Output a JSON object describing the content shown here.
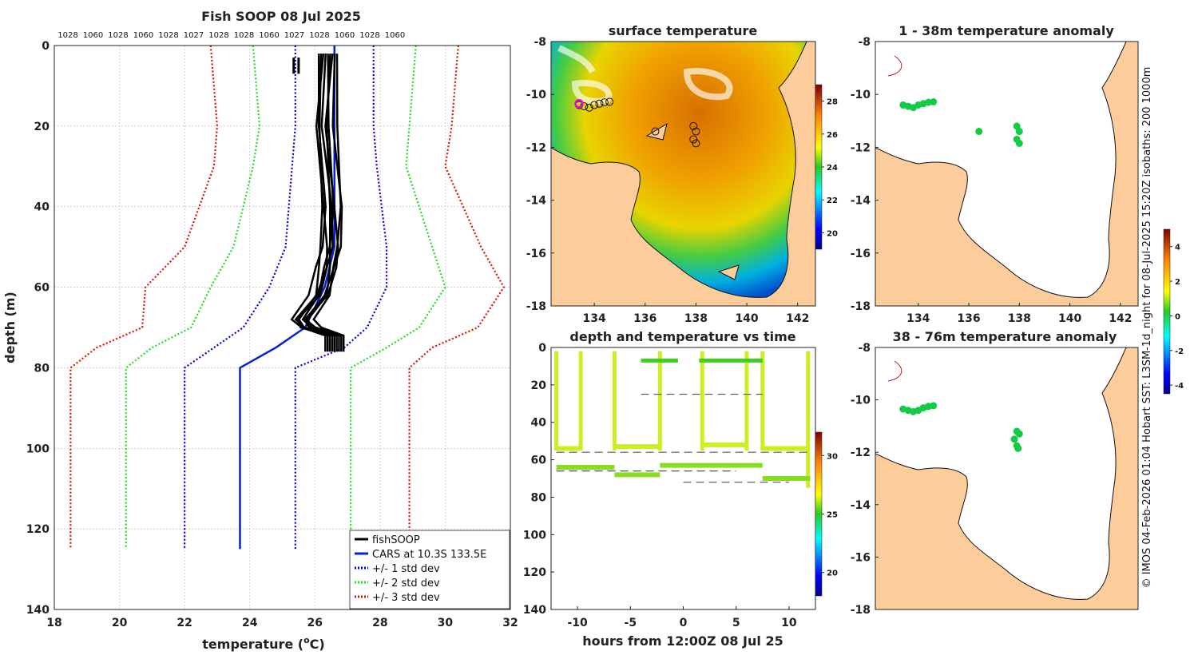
{
  "profile": {
    "title": "Fish SOOP 08 Jul 2025",
    "xlabel": "temperature (",
    "xlabel_unit": "o",
    "xlabel_end": "C)",
    "ylabel": "depth (m)",
    "top_labels": [
      "1028",
      "1060",
      "1028",
      "1060",
      "1028",
      "1027",
      "1028",
      "1028",
      "1060",
      "1027",
      "1028",
      "1060",
      "1028",
      "1060"
    ],
    "legend": [
      "fishSOOP",
      "CARS at 10.3S 133.5E",
      "+/- 1 std dev",
      "+/- 2 std dev",
      "+/- 3 std dev"
    ],
    "colors": {
      "fish": "#000000",
      "cars": "#0022dd",
      "sd1": "#0000dd",
      "sd2": "#22dd22",
      "sd3": "#dd1100"
    }
  },
  "map_sst": {
    "title": "surface temperature",
    "colorbar_ticks": [
      "28",
      "26",
      "24",
      "22",
      "20"
    ]
  },
  "map_anom1": {
    "title": "1 - 38m temperature anomaly"
  },
  "map_anom2": {
    "title": "38 - 76m temperature anomaly"
  },
  "anom_colorbar_ticks": [
    "4",
    "2",
    "0",
    "-2",
    "-4"
  ],
  "time_panel": {
    "title": "depth and temperature vs time",
    "xlabel": "hours from 12:00Z 08 Jul 25",
    "colorbar_ticks": [
      "30",
      "25",
      "20"
    ]
  },
  "side_note": "© IMOS 04-Feb-2026 01:04 Hobart SST: L3SM-1d_night for 08-Jul-2025 15:20Z isobaths: 200  1000m",
  "chart_data": [
    {
      "type": "line",
      "title": "Fish SOOP 08 Jul 2025",
      "xlabel": "temperature (oC)",
      "ylabel": "depth (m)",
      "xlim": [
        18,
        32
      ],
      "ylim": [
        140,
        0
      ],
      "xticks": [
        18,
        20,
        22,
        24,
        26,
        28,
        30,
        32
      ],
      "yticks": [
        0,
        20,
        40,
        60,
        80,
        100,
        120,
        140
      ],
      "depths": [
        0,
        10,
        20,
        30,
        50,
        60,
        70,
        75,
        80,
        125
      ],
      "series": [
        {
          "name": "CARS at 10.3S 133.5E",
          "depth": [
            0,
            10,
            20,
            30,
            50,
            60,
            70,
            75,
            80,
            125
          ],
          "temp": [
            26.6,
            26.6,
            26.6,
            26.6,
            26.6,
            26.3,
            25.7,
            24.8,
            23.7,
            23.7
          ]
        },
        {
          "name": "+/- 1 std dev (low)",
          "temp": [
            25.4,
            25.4,
            25.4,
            25.3,
            25.1,
            24.6,
            23.8,
            22.9,
            22.0,
            22.0
          ]
        },
        {
          "name": "+/- 1 std dev (high)",
          "temp": [
            27.8,
            27.8,
            27.8,
            27.9,
            28.2,
            28.2,
            27.6,
            26.9,
            25.4,
            25.4
          ]
        },
        {
          "name": "+/- 2 std dev (low)",
          "temp": [
            24.1,
            24.2,
            24.3,
            24.1,
            23.5,
            22.8,
            22.2,
            21.0,
            20.2,
            20.2
          ]
        },
        {
          "name": "+/- 2 std dev (high)",
          "temp": [
            29.1,
            29.0,
            28.9,
            28.8,
            29.6,
            30.0,
            29.2,
            28.2,
            27.1,
            27.1
          ]
        },
        {
          "name": "+/- 3 std dev (low)",
          "temp": [
            22.8,
            22.9,
            23.0,
            22.9,
            22.0,
            20.8,
            20.7,
            19.3,
            18.5,
            18.5
          ]
        },
        {
          "name": "+/- 3 std dev (high)",
          "temp": [
            30.4,
            30.3,
            30.2,
            30.0,
            31.1,
            31.8,
            31.0,
            29.6,
            28.9,
            28.9
          ]
        },
        {
          "name": "fishSOOP",
          "depth": [
            2,
            20,
            40,
            50,
            55,
            62,
            68,
            70,
            72,
            76
          ],
          "temp": [
            26.4,
            26.3,
            26.5,
            26.5,
            26.4,
            26.2,
            25.6,
            25.8,
            26.6,
            26.6
          ]
        }
      ]
    },
    {
      "type": "heatmap",
      "title": "surface temperature",
      "xlim": [
        132.3,
        142.7
      ],
      "ylim": [
        -18,
        -8
      ],
      "xticks": [
        134,
        136,
        138,
        140,
        142
      ],
      "yticks": [
        -8,
        -10,
        -12,
        -14,
        -16,
        -18
      ],
      "colorbar": {
        "range": [
          19,
          29
        ],
        "ticks": [
          20,
          22,
          24,
          26,
          28
        ]
      }
    },
    {
      "type": "scatter",
      "title": "depth and temperature vs time",
      "xlabel": "hours from 12:00Z 08 Jul 25",
      "xlim": [
        -12.5,
        12.5
      ],
      "ylim": [
        140,
        0
      ],
      "xticks": [
        -10,
        -5,
        0,
        5,
        10
      ],
      "yticks": [
        0,
        20,
        40,
        60,
        80,
        100,
        120,
        140
      ],
      "colorbar": {
        "range": [
          18,
          32
        ],
        "ticks": [
          20,
          25,
          30
        ]
      }
    },
    {
      "type": "scatter",
      "title": "1 - 38m temperature anomaly",
      "xlim": [
        132.3,
        142.7
      ],
      "ylim": [
        -18,
        -8
      ],
      "xticks": [
        134,
        136,
        138,
        140,
        142
      ],
      "yticks": [
        -8,
        -10,
        -12,
        -14,
        -16,
        -18
      ],
      "points": [
        [
          133.4,
          -10.4
        ],
        [
          133.6,
          -10.45
        ],
        [
          133.8,
          -10.5
        ],
        [
          134.0,
          -10.4
        ],
        [
          134.2,
          -10.35
        ],
        [
          134.4,
          -10.3
        ],
        [
          134.6,
          -10.28
        ],
        [
          136.4,
          -11.4
        ],
        [
          137.9,
          -11.2
        ],
        [
          138.0,
          -11.4
        ],
        [
          137.9,
          -11.7
        ],
        [
          138.0,
          -11.85
        ]
      ],
      "colorbar": {
        "range": [
          -4.5,
          5
        ],
        "ticks": [
          4,
          2,
          0,
          -2,
          -4
        ]
      }
    },
    {
      "type": "scatter",
      "title": "38 - 76m temperature anomaly",
      "xlim": [
        132.3,
        142.7
      ],
      "ylim": [
        -18,
        -8
      ],
      "xticks": [
        134,
        136,
        138,
        140,
        142
      ],
      "yticks": [
        -8,
        -10,
        -12,
        -14,
        -16,
        -18
      ],
      "points": [
        [
          133.4,
          -10.35
        ],
        [
          133.6,
          -10.4
        ],
        [
          133.8,
          -10.45
        ],
        [
          134.0,
          -10.4
        ],
        [
          134.2,
          -10.3
        ],
        [
          134.4,
          -10.25
        ],
        [
          134.6,
          -10.22
        ],
        [
          137.9,
          -11.2
        ],
        [
          138.0,
          -11.3
        ],
        [
          137.8,
          -11.5
        ],
        [
          137.9,
          -11.75
        ],
        [
          137.95,
          -11.85
        ]
      ]
    }
  ]
}
